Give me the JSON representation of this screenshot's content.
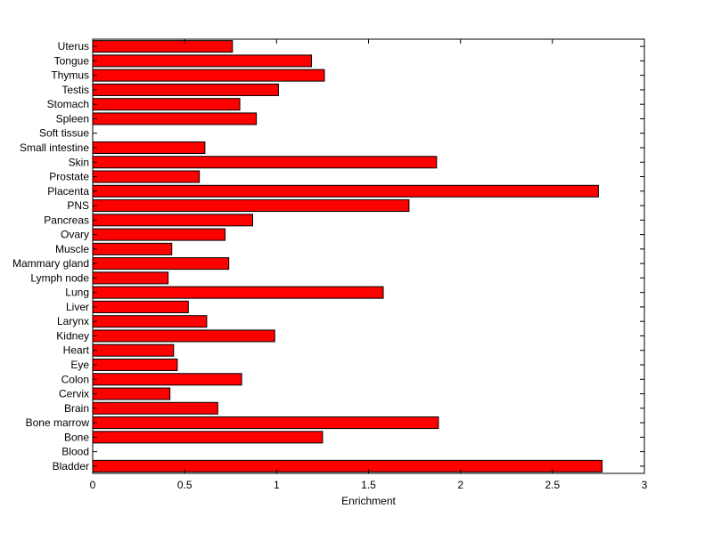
{
  "chart_data": {
    "type": "bar",
    "orientation": "horizontal",
    "title": "",
    "xlabel": "Enrichment",
    "ylabel": "",
    "xlim": [
      0,
      3
    ],
    "xticks": [
      0,
      0.5,
      1,
      1.5,
      2,
      2.5,
      3
    ],
    "xtick_labels": [
      "0",
      "0.5",
      "1",
      "1.5",
      "2",
      "2.5",
      "3"
    ],
    "grid": false,
    "legend": "none",
    "bar_color": "#ff0000",
    "edge_color": "#000000",
    "categories": [
      "Bladder",
      "Blood",
      "Bone",
      "Bone marrow",
      "Brain",
      "Cervix",
      "Colon",
      "Eye",
      "Heart",
      "Kidney",
      "Larynx",
      "Liver",
      "Lung",
      "Lymph node",
      "Mammary gland",
      "Muscle",
      "Ovary",
      "Pancreas",
      "PNS",
      "Placenta",
      "Prostate",
      "Skin",
      "Small intestine",
      "Soft tissue",
      "Spleen",
      "Stomach",
      "Testis",
      "Thymus",
      "Tongue",
      "Uterus"
    ],
    "values": [
      2.77,
      0,
      1.25,
      1.88,
      0.68,
      0.42,
      0.81,
      0.46,
      0.44,
      0.99,
      0.62,
      0.52,
      1.58,
      0.41,
      0.74,
      0.43,
      0.72,
      0.87,
      1.72,
      2.75,
      0.58,
      1.87,
      0.61,
      0,
      0.89,
      0.8,
      1.01,
      1.26,
      1.19,
      0.76
    ]
  }
}
